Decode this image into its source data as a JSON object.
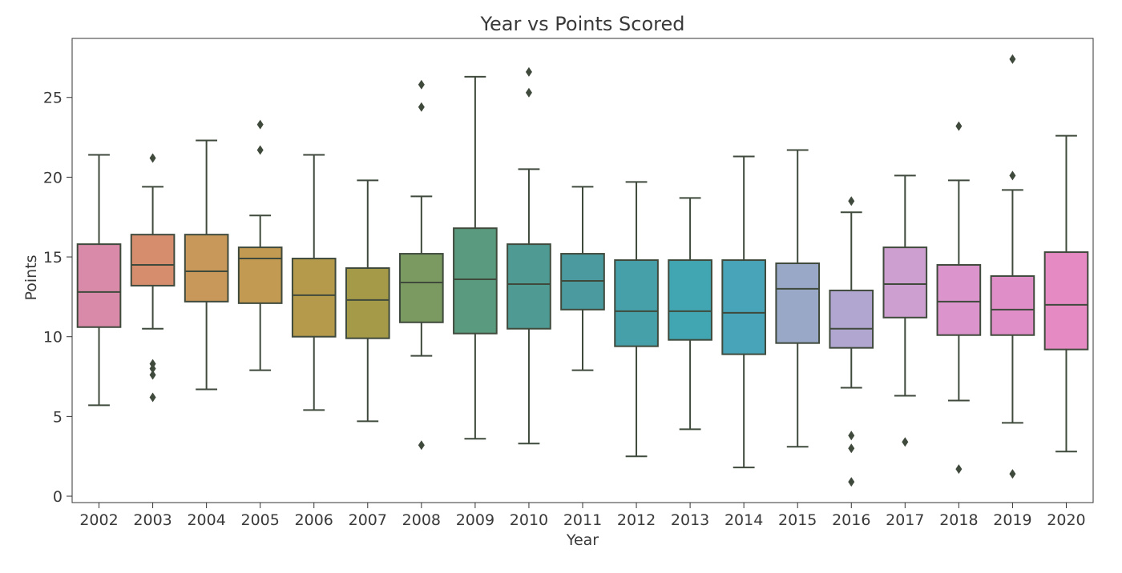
{
  "chart_data": {
    "type": "box",
    "title": "Year vs Points Scored",
    "xlabel": "Year",
    "ylabel": "Points",
    "ylim": [
      -0.4,
      28.7
    ],
    "yticks": [
      0,
      5,
      10,
      15,
      20,
      25
    ],
    "categories": [
      "2002",
      "2003",
      "2004",
      "2005",
      "2006",
      "2007",
      "2008",
      "2009",
      "2010",
      "2011",
      "2012",
      "2013",
      "2014",
      "2015",
      "2016",
      "2017",
      "2018",
      "2019",
      "2020"
    ],
    "colors": [
      "#d98aa8",
      "#d58d6e",
      "#c8985a",
      "#c39a52",
      "#b59a4c",
      "#a49a48",
      "#7a9a62",
      "#5a9a7e",
      "#4f9a92",
      "#4b9aa0",
      "#46a0aa",
      "#42a6b2",
      "#48a4b8",
      "#9aa8c8",
      "#b0a6d0",
      "#cd9fd0",
      "#db94cc",
      "#e08ec8",
      "#e68ac4"
    ],
    "boxes": [
      {
        "whislo": 5.7,
        "q1": 10.6,
        "med": 12.8,
        "q3": 15.8,
        "whishi": 21.4,
        "fliers": []
      },
      {
        "whislo": 10.5,
        "q1": 13.2,
        "med": 14.5,
        "q3": 16.4,
        "whishi": 19.4,
        "fliers": [
          21.2,
          8.3,
          8.0,
          7.6,
          6.2
        ]
      },
      {
        "whislo": 6.7,
        "q1": 12.2,
        "med": 14.1,
        "q3": 16.4,
        "whishi": 22.3,
        "fliers": []
      },
      {
        "whislo": 7.9,
        "q1": 12.1,
        "med": 14.9,
        "q3": 15.6,
        "whishi": 17.6,
        "fliers": [
          23.3,
          21.7
        ]
      },
      {
        "whislo": 5.4,
        "q1": 10.0,
        "med": 12.6,
        "q3": 14.9,
        "whishi": 21.4,
        "fliers": []
      },
      {
        "whislo": 4.7,
        "q1": 9.9,
        "med": 12.3,
        "q3": 14.3,
        "whishi": 19.8,
        "fliers": []
      },
      {
        "whislo": 8.8,
        "q1": 10.9,
        "med": 13.4,
        "q3": 15.2,
        "whishi": 18.8,
        "fliers": [
          25.8,
          24.4,
          3.2
        ]
      },
      {
        "whislo": 3.6,
        "q1": 10.2,
        "med": 13.6,
        "q3": 16.8,
        "whishi": 26.3,
        "fliers": []
      },
      {
        "whislo": 3.3,
        "q1": 10.5,
        "med": 13.3,
        "q3": 15.8,
        "whishi": 20.5,
        "fliers": [
          26.6,
          25.3
        ]
      },
      {
        "whislo": 7.9,
        "q1": 11.7,
        "med": 13.5,
        "q3": 15.2,
        "whishi": 19.4,
        "fliers": []
      },
      {
        "whislo": 2.5,
        "q1": 9.4,
        "med": 11.6,
        "q3": 14.8,
        "whishi": 19.7,
        "fliers": []
      },
      {
        "whislo": 4.2,
        "q1": 9.8,
        "med": 11.6,
        "q3": 14.8,
        "whishi": 18.7,
        "fliers": []
      },
      {
        "whislo": 1.8,
        "q1": 8.9,
        "med": 11.5,
        "q3": 14.8,
        "whishi": 21.3,
        "fliers": []
      },
      {
        "whislo": 3.1,
        "q1": 9.6,
        "med": 13.0,
        "q3": 14.6,
        "whishi": 21.7,
        "fliers": []
      },
      {
        "whislo": 6.8,
        "q1": 9.3,
        "med": 10.5,
        "q3": 12.9,
        "whishi": 17.8,
        "fliers": [
          18.5,
          3.8,
          3.0,
          0.9
        ]
      },
      {
        "whislo": 6.3,
        "q1": 11.2,
        "med": 13.3,
        "q3": 15.6,
        "whishi": 20.1,
        "fliers": [
          3.4
        ]
      },
      {
        "whislo": 6.0,
        "q1": 10.1,
        "med": 12.2,
        "q3": 14.5,
        "whishi": 19.8,
        "fliers": [
          23.2,
          1.7
        ]
      },
      {
        "whislo": 4.6,
        "q1": 10.1,
        "med": 11.7,
        "q3": 13.8,
        "whishi": 19.2,
        "fliers": [
          27.4,
          20.1,
          1.4
        ]
      },
      {
        "whislo": 2.8,
        "q1": 9.2,
        "med": 12.0,
        "q3": 15.3,
        "whishi": 22.6,
        "fliers": []
      }
    ]
  }
}
